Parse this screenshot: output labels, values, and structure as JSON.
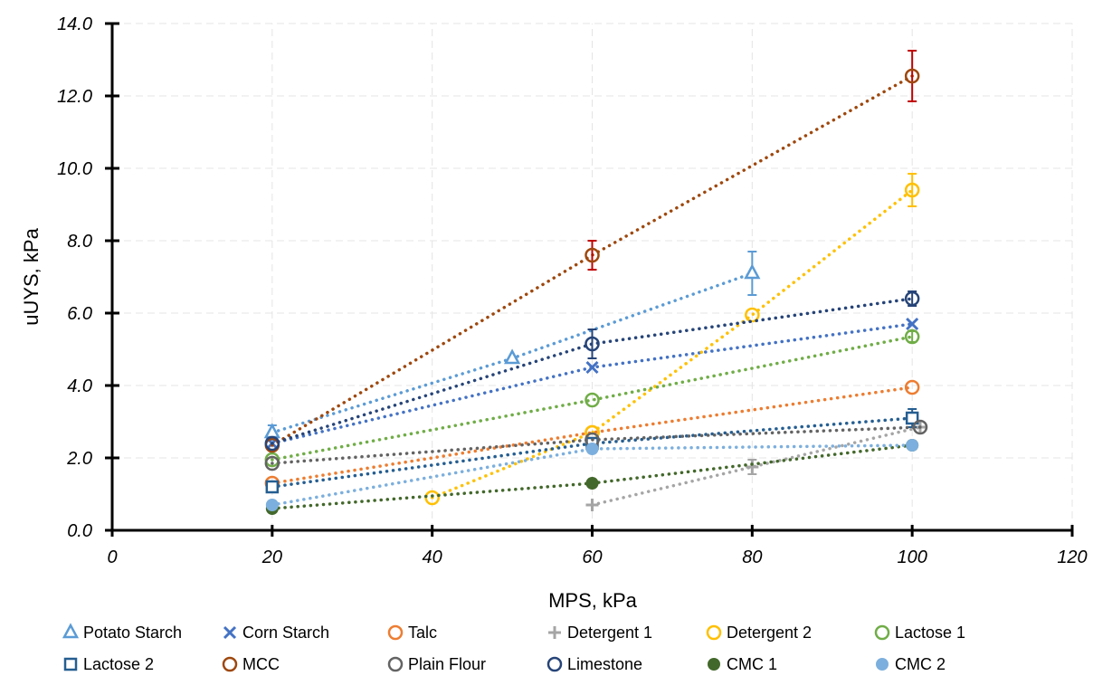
{
  "chart_data": {
    "type": "scatter",
    "title": "",
    "xlabel": "MPS, kPa",
    "ylabel": "uUYS, kPa",
    "xlim": [
      0,
      120
    ],
    "ylim": [
      0,
      14
    ],
    "xticks": [
      0,
      20,
      40,
      60,
      80,
      100,
      120
    ],
    "xtick_labels": [
      "0",
      "20",
      "40",
      "60",
      "80",
      "100",
      "120"
    ],
    "yticks": [
      0,
      2,
      4,
      6,
      8,
      10,
      12,
      14
    ],
    "ytick_labels": [
      "0.0",
      "2.0",
      "4.0",
      "6.0",
      "8.0",
      "10.0",
      "12.0",
      "14.0"
    ],
    "grid": "dashed light gray",
    "legend_position": "bottom",
    "line_style": "dotted",
    "series": [
      {
        "name": "Potato Starch",
        "marker": "triangle-open",
        "color": "#5B9BD5",
        "x": [
          20,
          50,
          80
        ],
        "y": [
          2.7,
          4.75,
          7.1
        ],
        "err": [
          0.2,
          0,
          0.6
        ]
      },
      {
        "name": "Corn Starch",
        "marker": "x",
        "color": "#4472C4",
        "x": [
          20,
          60,
          100
        ],
        "y": [
          2.4,
          4.5,
          5.7
        ],
        "err": [
          0,
          0,
          0
        ]
      },
      {
        "name": "Talc",
        "marker": "circle-open",
        "color": "#ED7D31",
        "x": [
          20,
          60,
          100
        ],
        "y": [
          1.3,
          2.7,
          3.95
        ],
        "err": [
          0,
          0,
          0
        ]
      },
      {
        "name": "Detergent 1",
        "marker": "plus",
        "color": "#A5A5A5",
        "x": [
          60,
          80,
          101
        ],
        "y": [
          0.7,
          1.75,
          2.85
        ],
        "err": [
          0,
          0.2,
          0
        ]
      },
      {
        "name": "Detergent 2",
        "marker": "circle-open",
        "color": "#FFC000",
        "x": [
          40,
          60,
          80,
          100
        ],
        "y": [
          0.9,
          2.7,
          5.95,
          9.4
        ],
        "err": [
          0,
          0,
          0,
          0.45
        ]
      },
      {
        "name": "Lactose 1",
        "marker": "circle-open",
        "color": "#70AD47",
        "x": [
          20,
          60,
          100
        ],
        "y": [
          1.95,
          3.6,
          5.35
        ],
        "err": [
          0,
          0,
          0.15
        ]
      },
      {
        "name": "Lactose 2",
        "marker": "square-open",
        "color": "#255E91",
        "x": [
          20,
          60,
          100
        ],
        "y": [
          1.2,
          2.4,
          3.1
        ],
        "err": [
          0,
          0,
          0.25
        ]
      },
      {
        "name": "MCC",
        "marker": "circle-open",
        "color": "#9E480E",
        "x": [
          20,
          60,
          100
        ],
        "y": [
          2.35,
          7.6,
          12.55
        ],
        "err": [
          0,
          0.4,
          0.7
        ],
        "err_color": "#C00000"
      },
      {
        "name": "Plain Flour",
        "marker": "circle-open",
        "color": "#636363",
        "x": [
          20,
          60,
          101
        ],
        "y": [
          1.85,
          2.5,
          2.85
        ],
        "err": [
          0,
          0,
          0
        ]
      },
      {
        "name": "Limestone",
        "marker": "circle-open",
        "color": "#264478",
        "x": [
          20,
          60,
          100
        ],
        "y": [
          2.4,
          5.15,
          6.4
        ],
        "err": [
          0,
          0.4,
          0.2
        ]
      },
      {
        "name": "CMC 1",
        "marker": "circle-filled",
        "color": "#43682B",
        "x": [
          20,
          60,
          100
        ],
        "y": [
          0.6,
          1.3,
          2.35
        ],
        "err": [
          0,
          0,
          0
        ]
      },
      {
        "name": "CMC 2",
        "marker": "circle-filled",
        "color": "#7CAFDD",
        "x": [
          20,
          60,
          100
        ],
        "y": [
          0.7,
          2.25,
          2.35
        ],
        "err": [
          0,
          0,
          0
        ]
      }
    ]
  }
}
